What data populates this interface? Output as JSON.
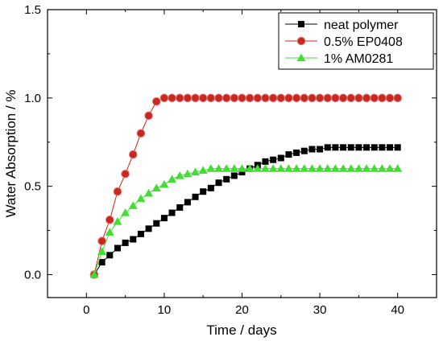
{
  "chart_data": {
    "type": "line",
    "xlabel": "Time / days",
    "ylabel": "Water Absorption / %",
    "xlim": [
      -5,
      45
    ],
    "ylim": [
      -0.13,
      1.5
    ],
    "xticks": [
      0,
      10,
      20,
      30,
      40
    ],
    "yticks": [
      0.0,
      0.5,
      1.0,
      1.5
    ],
    "x_tick_labels": [
      "0",
      "10",
      "20",
      "30",
      "40"
    ],
    "y_tick_labels": [
      "0.0",
      "0.5",
      "1.0",
      "1.5"
    ],
    "grid": false,
    "legend_position": "top-right",
    "series": [
      {
        "name": "neat polymer",
        "marker": "square",
        "color": "#000000",
        "x": [
          1,
          2,
          3,
          4,
          5,
          6,
          7,
          8,
          9,
          10,
          11,
          12,
          13,
          14,
          15,
          16,
          17,
          18,
          19,
          20,
          21,
          22,
          23,
          24,
          25,
          26,
          27,
          28,
          29,
          30,
          31,
          32,
          33,
          34,
          35,
          36,
          37,
          38,
          39,
          40
        ],
        "y": [
          0.0,
          0.07,
          0.11,
          0.15,
          0.18,
          0.2,
          0.23,
          0.26,
          0.29,
          0.32,
          0.35,
          0.38,
          0.41,
          0.44,
          0.47,
          0.49,
          0.52,
          0.54,
          0.56,
          0.58,
          0.6,
          0.62,
          0.64,
          0.65,
          0.66,
          0.68,
          0.69,
          0.7,
          0.71,
          0.71,
          0.72,
          0.72,
          0.72,
          0.72,
          0.72,
          0.72,
          0.72,
          0.72,
          0.72,
          0.72
        ]
      },
      {
        "name": "0.5% EP0408",
        "marker": "circle",
        "color": "#c8281e",
        "x": [
          1,
          2,
          3,
          4,
          5,
          6,
          7,
          8,
          9,
          10,
          11,
          12,
          13,
          14,
          15,
          16,
          17,
          18,
          19,
          20,
          21,
          22,
          23,
          24,
          25,
          26,
          27,
          28,
          29,
          30,
          31,
          32,
          33,
          34,
          35,
          36,
          37,
          38,
          39,
          40
        ],
        "y": [
          0.0,
          0.19,
          0.31,
          0.47,
          0.57,
          0.68,
          0.8,
          0.9,
          0.98,
          1.0,
          1.0,
          1.0,
          1.0,
          1.0,
          1.0,
          1.0,
          1.0,
          1.0,
          1.0,
          1.0,
          1.0,
          1.0,
          1.0,
          1.0,
          1.0,
          1.0,
          1.0,
          1.0,
          1.0,
          1.0,
          1.0,
          1.0,
          1.0,
          1.0,
          1.0,
          1.0,
          1.0,
          1.0,
          1.0,
          1.0
        ]
      },
      {
        "name": "1% AM0281",
        "marker": "triangle",
        "color": "#44dd33",
        "x": [
          1,
          2,
          3,
          4,
          5,
          6,
          7,
          8,
          9,
          10,
          11,
          12,
          13,
          14,
          15,
          16,
          17,
          18,
          19,
          20,
          21,
          22,
          23,
          24,
          25,
          26,
          27,
          28,
          29,
          30,
          31,
          32,
          33,
          34,
          35,
          36,
          37,
          38,
          39,
          40
        ],
        "y": [
          0.0,
          0.13,
          0.24,
          0.3,
          0.35,
          0.39,
          0.43,
          0.46,
          0.49,
          0.51,
          0.54,
          0.56,
          0.57,
          0.58,
          0.59,
          0.6,
          0.6,
          0.6,
          0.6,
          0.6,
          0.6,
          0.6,
          0.6,
          0.6,
          0.6,
          0.6,
          0.6,
          0.6,
          0.6,
          0.6,
          0.6,
          0.6,
          0.6,
          0.6,
          0.6,
          0.6,
          0.6,
          0.6,
          0.6,
          0.6
        ]
      }
    ]
  }
}
